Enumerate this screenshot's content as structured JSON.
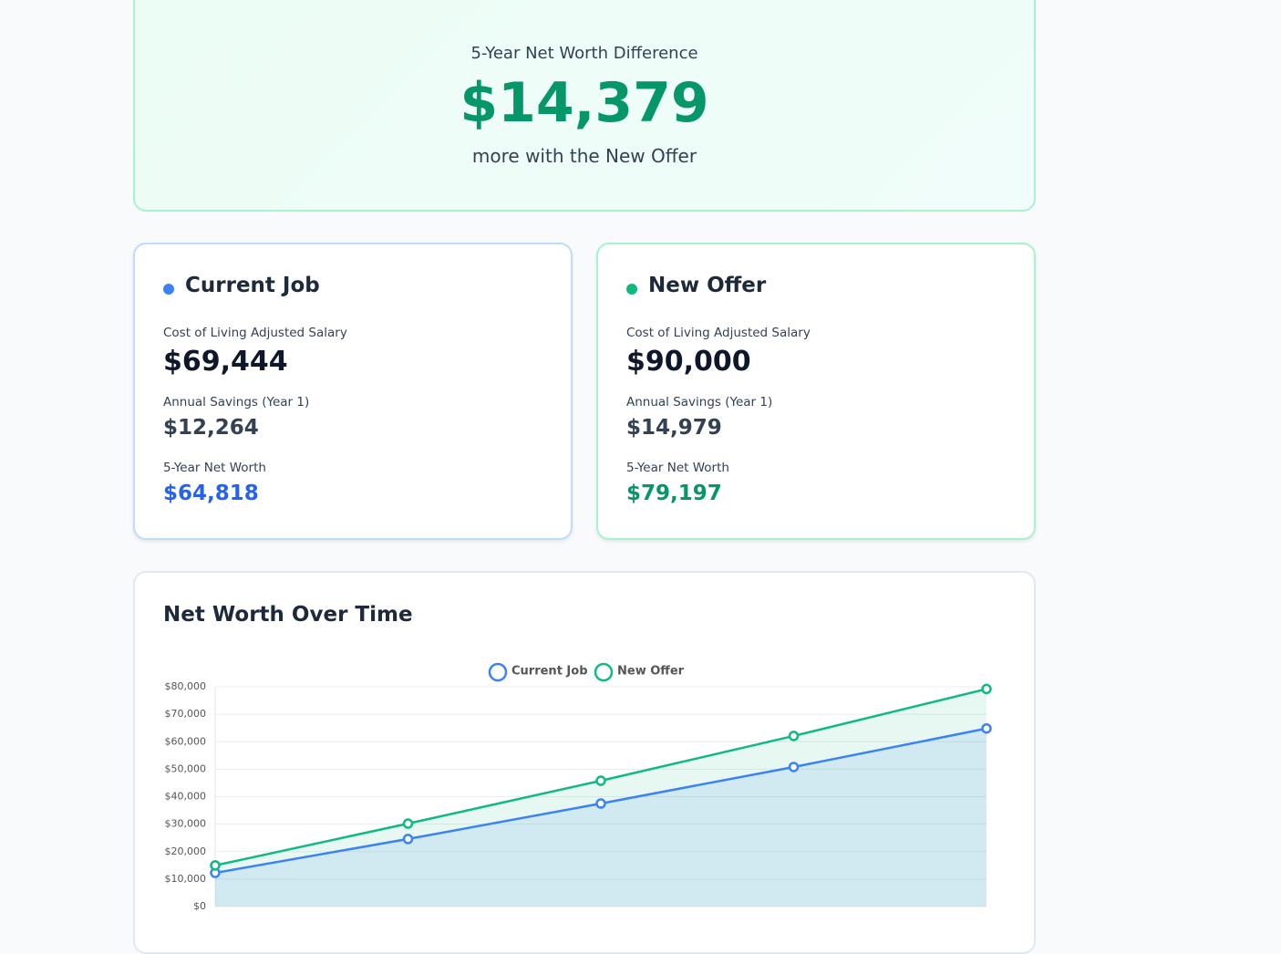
{
  "summary": {
    "label": "5-Year Net Worth Difference",
    "amount": "$14,379",
    "caption": "more with the New Offer"
  },
  "cards": [
    {
      "name": "Current Job",
      "salary_label": "Cost of Living Adjusted Salary",
      "salary": "$69,444",
      "savings_label": "Annual Savings (Year 1)",
      "savings": "$12,264",
      "net_worth_label": "5-Year Net Worth",
      "net_worth": "$64,818"
    },
    {
      "name": "New Offer",
      "salary_label": "Cost of Living Adjusted Salary",
      "salary": "$90,000",
      "savings_label": "Annual Savings (Year 1)",
      "savings": "$14,979",
      "net_worth_label": "5-Year Net Worth",
      "net_worth": "$79,197"
    }
  ],
  "chart_data": {
    "type": "line",
    "title": "Net Worth Over Time",
    "categories": [
      null,
      null,
      null,
      null,
      null
    ],
    "series": [
      {
        "name": "Current Job",
        "color": "#3b82f6",
        "fill": "rgba(59,130,246,0.12)",
        "values": [
          12264,
          24600,
          37500,
          50800,
          64818
        ]
      },
      {
        "name": "New Offer",
        "color": "#10b981",
        "fill": "rgba(16,185,129,0.1)",
        "values": [
          14979,
          30200,
          45800,
          62100,
          79197
        ]
      }
    ],
    "ylim": [
      0,
      80000
    ],
    "yticks": [
      {
        "value": 0,
        "label": "$0"
      },
      {
        "value": 10000,
        "label": "$10,000"
      },
      {
        "value": 20000,
        "label": "$20,000"
      },
      {
        "value": 30000,
        "label": "$30,000"
      },
      {
        "value": 40000,
        "label": "$40,000"
      },
      {
        "value": 50000,
        "label": "$50,000"
      },
      {
        "value": 60000,
        "label": "$60,000"
      },
      {
        "value": 70000,
        "label": "$70,000"
      },
      {
        "value": 80000,
        "label": "$80,000"
      }
    ],
    "grid": true,
    "legend": "top"
  }
}
